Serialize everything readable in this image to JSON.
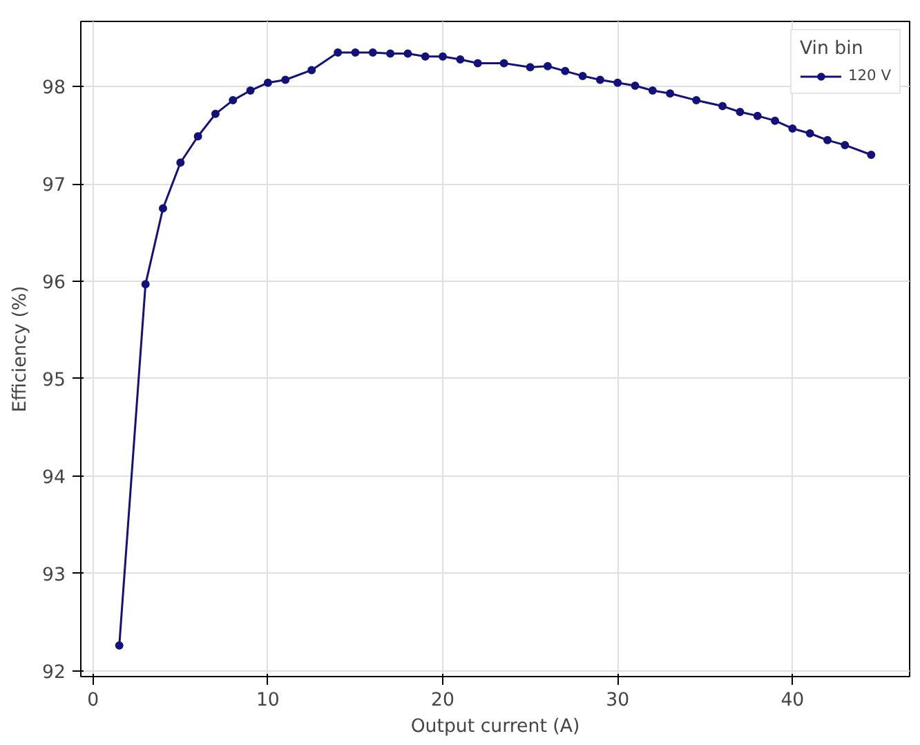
{
  "chart_data": {
    "type": "line",
    "xlabel": "Output current (A)",
    "ylabel": "Efficiency (%)",
    "legend_title": "Vin bin",
    "x": [
      1.5,
      3,
      4,
      5,
      6,
      7,
      8,
      9,
      10,
      11,
      12.5,
      14,
      15,
      16,
      17,
      18,
      19,
      20,
      21,
      22,
      23.5,
      25,
      26,
      27,
      28,
      29,
      30,
      31,
      32,
      33,
      34.5,
      36,
      37,
      38,
      39,
      40,
      41,
      42,
      43,
      44.5
    ],
    "series": [
      {
        "name": "120 V",
        "color": "#12127a",
        "values": [
          92.26,
          95.97,
          96.75,
          97.22,
          97.49,
          97.72,
          97.86,
          97.96,
          98.04,
          98.07,
          98.17,
          98.35,
          98.35,
          98.35,
          98.34,
          98.34,
          98.31,
          98.31,
          98.28,
          98.24,
          98.24,
          98.2,
          98.21,
          98.16,
          98.11,
          98.07,
          98.04,
          98.01,
          97.96,
          97.93,
          97.86,
          97.8,
          97.74,
          97.7,
          97.65,
          97.57,
          97.52,
          97.45,
          97.4,
          97.3
        ]
      }
    ],
    "xlim": [
      -0.7,
      46.7
    ],
    "ylim": [
      91.94,
      98.67
    ],
    "xticks": [
      0,
      10,
      20,
      30,
      40
    ],
    "yticks": [
      92,
      93,
      94,
      95,
      96,
      97,
      98
    ],
    "grid": true,
    "legend": "top right",
    "marker": "circle",
    "line_style": "solid"
  }
}
